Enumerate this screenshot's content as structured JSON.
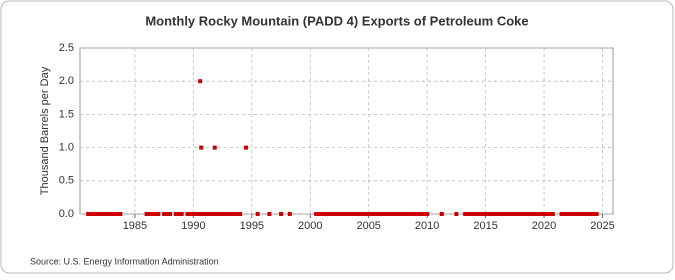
{
  "chart_data": {
    "type": "scatter",
    "title": "Monthly Rocky Mountain (PADD 4) Exports of Petroleum Coke",
    "y_label": "Thousand Barrels per Day",
    "source": "Source: U.S. Energy Information Administration",
    "color": "#cc0000",
    "grid": true,
    "xlim": [
      1980.3,
      2025.9
    ],
    "xticks": [
      1985,
      1990,
      1995,
      2000,
      2005,
      2010,
      2015,
      2020,
      2025
    ],
    "ylim": [
      0,
      2.5
    ],
    "yticks": [
      {
        "value": 0,
        "label": "0.0"
      },
      {
        "value": 0.5,
        "label": "0.5"
      },
      {
        "value": 1,
        "label": "1.0"
      },
      {
        "value": 1.5,
        "label": "1.5"
      },
      {
        "value": 2,
        "label": "2.0"
      },
      {
        "value": 2.5,
        "label": "2.5"
      }
    ],
    "x": [
      1981,
      1981.25,
      1981.5,
      1981.75,
      1982,
      1982.25,
      1982.5,
      1982.75,
      1983,
      1983.25,
      1983.5,
      1983.75,
      1986,
      1986.25,
      1986.5,
      1986.75,
      1987,
      1987.5,
      1987.75,
      1988,
      1988.5,
      1988.75,
      1989,
      1989.5,
      1989.75,
      1990,
      1990.25,
      1990.5,
      1990.58,
      1990.67,
      1990.75,
      1991,
      1991.25,
      1991.5,
      1991.75,
      1991.83,
      1992,
      1992.25,
      1992.5,
      1992.75,
      1993,
      1993.25,
      1993.5,
      1993.75,
      1994,
      1994.5,
      1995.5,
      1996.5,
      1997.5,
      1998.25,
      2000.5,
      2000.75,
      2001,
      2001.25,
      2001.5,
      2001.75,
      2002,
      2002.25,
      2002.5,
      2002.75,
      2003,
      2003.25,
      2003.5,
      2003.75,
      2004,
      2004.25,
      2004.5,
      2004.75,
      2005,
      2005.25,
      2005.5,
      2005.75,
      2006,
      2006.25,
      2006.5,
      2006.75,
      2007,
      2007.25,
      2007.5,
      2007.75,
      2008,
      2008.25,
      2008.5,
      2008.75,
      2009,
      2009.25,
      2009.5,
      2009.75,
      2010,
      2011.25,
      2012.5,
      2013.25,
      2013.5,
      2013.75,
      2014,
      2014.25,
      2014.5,
      2014.75,
      2015,
      2015.25,
      2015.5,
      2015.75,
      2016,
      2016.25,
      2016.5,
      2016.75,
      2017,
      2017.25,
      2017.5,
      2017.75,
      2018,
      2018.25,
      2018.5,
      2018.75,
      2019,
      2019.25,
      2019.5,
      2019.75,
      2020,
      2020.25,
      2020.5,
      2020.75,
      2021.5,
      2021.75,
      2022,
      2022.25,
      2022.5,
      2022.75,
      2023,
      2023.25,
      2023.5,
      2023.75,
      2024,
      2024.25,
      2024.5
    ],
    "values": [
      0,
      0,
      0,
      0,
      0,
      0,
      0,
      0,
      0,
      0,
      0,
      0,
      0,
      0,
      0,
      0,
      0,
      0,
      0,
      0,
      0,
      0,
      0,
      0,
      0,
      0,
      0,
      0,
      2,
      1,
      0,
      0,
      0,
      0,
      0,
      1,
      0,
      0,
      0,
      0,
      0,
      0,
      0,
      0,
      0,
      1,
      0,
      0,
      0,
      0,
      0,
      0,
      0,
      0,
      0,
      0,
      0,
      0,
      0,
      0,
      0,
      0,
      0,
      0,
      0,
      0,
      0,
      0,
      0,
      0,
      0,
      0,
      0,
      0,
      0,
      0,
      0,
      0,
      0,
      0,
      0,
      0,
      0,
      0,
      0,
      0,
      0,
      0,
      0,
      0,
      0,
      0,
      0,
      0,
      0,
      0,
      0,
      0,
      0,
      0,
      0,
      0,
      0,
      0,
      0,
      0,
      0,
      0,
      0,
      0,
      0,
      0,
      0,
      0,
      0,
      0,
      0,
      0,
      0,
      0,
      0,
      0,
      0,
      0,
      0,
      0,
      0,
      0,
      0,
      0,
      0,
      0,
      0,
      0,
      0
    ]
  }
}
